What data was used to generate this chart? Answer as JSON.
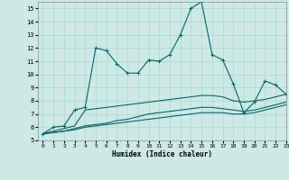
{
  "xlabel": "Humidex (Indice chaleur)",
  "background_color": "#cce9e5",
  "grid_color": "#b0d4d0",
  "line_color": "#006666",
  "xlim": [
    -0.5,
    23
  ],
  "ylim": [
    5,
    15.5
  ],
  "yticks": [
    5,
    6,
    7,
    8,
    9,
    10,
    11,
    12,
    13,
    14,
    15
  ],
  "xticks": [
    0,
    1,
    2,
    3,
    4,
    5,
    6,
    7,
    8,
    9,
    10,
    11,
    12,
    13,
    14,
    15,
    16,
    17,
    18,
    19,
    20,
    21,
    22,
    23
  ],
  "series": [
    {
      "x": [
        0,
        1,
        2,
        3,
        4,
        5,
        6,
        7,
        8,
        9,
        10,
        11,
        12,
        13,
        14,
        15,
        16,
        17,
        18,
        19,
        20,
        21,
        22,
        23
      ],
      "y": [
        5.5,
        6.0,
        6.1,
        7.3,
        7.5,
        12.0,
        11.8,
        10.8,
        10.1,
        10.1,
        11.1,
        11.0,
        11.5,
        13.0,
        15.0,
        15.5,
        11.5,
        11.1,
        9.3,
        7.1,
        7.9,
        9.5,
        9.2,
        8.5
      ],
      "marker": true
    },
    {
      "x": [
        0,
        1,
        2,
        3,
        4,
        5,
        6,
        7,
        8,
        9,
        10,
        11,
        12,
        13,
        14,
        15,
        16,
        17,
        18,
        19,
        20,
        21,
        22,
        23
      ],
      "y": [
        5.5,
        5.7,
        5.9,
        6.1,
        7.3,
        7.4,
        7.5,
        7.6,
        7.7,
        7.8,
        7.9,
        8.0,
        8.1,
        8.2,
        8.3,
        8.4,
        8.4,
        8.3,
        8.0,
        7.9,
        8.0,
        8.1,
        8.3,
        8.5
      ],
      "marker": false
    },
    {
      "x": [
        0,
        1,
        2,
        3,
        4,
        5,
        6,
        7,
        8,
        9,
        10,
        11,
        12,
        13,
        14,
        15,
        16,
        17,
        18,
        19,
        20,
        21,
        22,
        23
      ],
      "y": [
        5.5,
        5.6,
        5.7,
        5.9,
        6.1,
        6.2,
        6.3,
        6.5,
        6.6,
        6.8,
        7.0,
        7.1,
        7.2,
        7.3,
        7.4,
        7.5,
        7.5,
        7.4,
        7.3,
        7.2,
        7.3,
        7.5,
        7.7,
        7.9
      ],
      "marker": false
    },
    {
      "x": [
        0,
        1,
        2,
        3,
        4,
        5,
        6,
        7,
        8,
        9,
        10,
        11,
        12,
        13,
        14,
        15,
        16,
        17,
        18,
        19,
        20,
        21,
        22,
        23
      ],
      "y": [
        5.5,
        5.6,
        5.7,
        5.8,
        6.0,
        6.1,
        6.2,
        6.3,
        6.4,
        6.5,
        6.6,
        6.7,
        6.8,
        6.9,
        7.0,
        7.1,
        7.1,
        7.1,
        7.0,
        7.0,
        7.1,
        7.3,
        7.5,
        7.7
      ],
      "marker": false
    }
  ]
}
